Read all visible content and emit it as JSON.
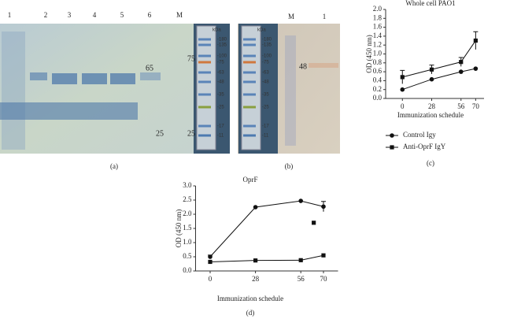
{
  "gels": [
    {
      "caption": "(a)",
      "lane_labels": [
        "1",
        "2",
        "3",
        "4",
        "5",
        "6",
        "M"
      ],
      "annotations": [
        "75",
        "65",
        "25",
        "25"
      ],
      "ladder": {
        "unit": "kDa",
        "labels": [
          "-180",
          "-135",
          "-100",
          "-75",
          "-63",
          "-48",
          "-35",
          "-25",
          "-17",
          "-11"
        ]
      }
    },
    {
      "caption": "(b)",
      "lane_labels": [
        "M",
        "1"
      ],
      "annotations": [
        "48"
      ],
      "ladder": {
        "unit": "kDa",
        "labels": [
          "-180",
          "-135",
          "-100",
          "-75",
          "-63",
          "-48",
          "-35",
          "-25",
          "-17",
          "-11"
        ]
      }
    }
  ],
  "chart_data": [
    {
      "type": "line",
      "title": "Whole cell PAO1",
      "caption": "(c)",
      "x_label": "Immunization schedule",
      "y_label": "OD (450 nm)",
      "x": [
        0,
        28,
        56,
        70
      ],
      "xlim": [
        -16,
        78
      ],
      "xticks": [
        0,
        28,
        56,
        70
      ],
      "ylim": [
        0,
        2
      ],
      "yticks": [
        {
          "value": 0,
          "label": "0.0"
        },
        0.2,
        0.4,
        0.6,
        0.8,
        {
          "value": 1,
          "label": "1.0"
        },
        1.2,
        1.4,
        1.6,
        1.8,
        {
          "value": 2,
          "label": "2.0"
        }
      ],
      "legend": "bottom",
      "series": [
        {
          "name": "Control Igy",
          "color": "#111111",
          "marker": "circle",
          "values": [
            0.2,
            0.43,
            0.6,
            0.67
          ],
          "errors": [
            null,
            null,
            null,
            null
          ]
        },
        {
          "name": "Anti-OprF IgY",
          "color": "#111111",
          "marker": "square",
          "values": [
            0.48,
            0.65,
            0.82,
            1.3
          ],
          "errors": [
            0.15,
            0.1,
            0.1,
            0.2
          ]
        }
      ]
    },
    {
      "type": "line",
      "title": "OprF",
      "caption": "(d)",
      "x_label": "Immunization schedule",
      "y_label": "OD (450 nm)",
      "x": [
        0,
        28,
        56,
        70
      ],
      "xlim": [
        -9,
        79
      ],
      "xticks": [
        0,
        28,
        56,
        70
      ],
      "ylim": [
        0,
        3
      ],
      "yticks": [
        {
          "value": 0,
          "label": "0.0"
        },
        0.5,
        {
          "value": 1,
          "label": "1.0"
        },
        1.5,
        {
          "value": 2,
          "label": "2.0"
        },
        2.5,
        {
          "value": 3,
          "label": "3.0"
        }
      ],
      "series": [
        {
          "color": "#111111",
          "marker": "circle",
          "values": [
            0.5,
            2.25,
            2.47,
            2.27
          ],
          "errors": [
            0.06,
            null,
            null,
            0.18
          ]
        },
        {
          "color": "#111111",
          "marker": "square",
          "values": [
            0.32,
            0.37,
            0.38,
            0.55
          ],
          "errors": [
            null,
            null,
            null,
            null
          ]
        }
      ],
      "extra_points": {
        "color": "#111111",
        "marker": "square",
        "x": [
          64
        ],
        "values": [
          1.7
        ]
      }
    }
  ]
}
